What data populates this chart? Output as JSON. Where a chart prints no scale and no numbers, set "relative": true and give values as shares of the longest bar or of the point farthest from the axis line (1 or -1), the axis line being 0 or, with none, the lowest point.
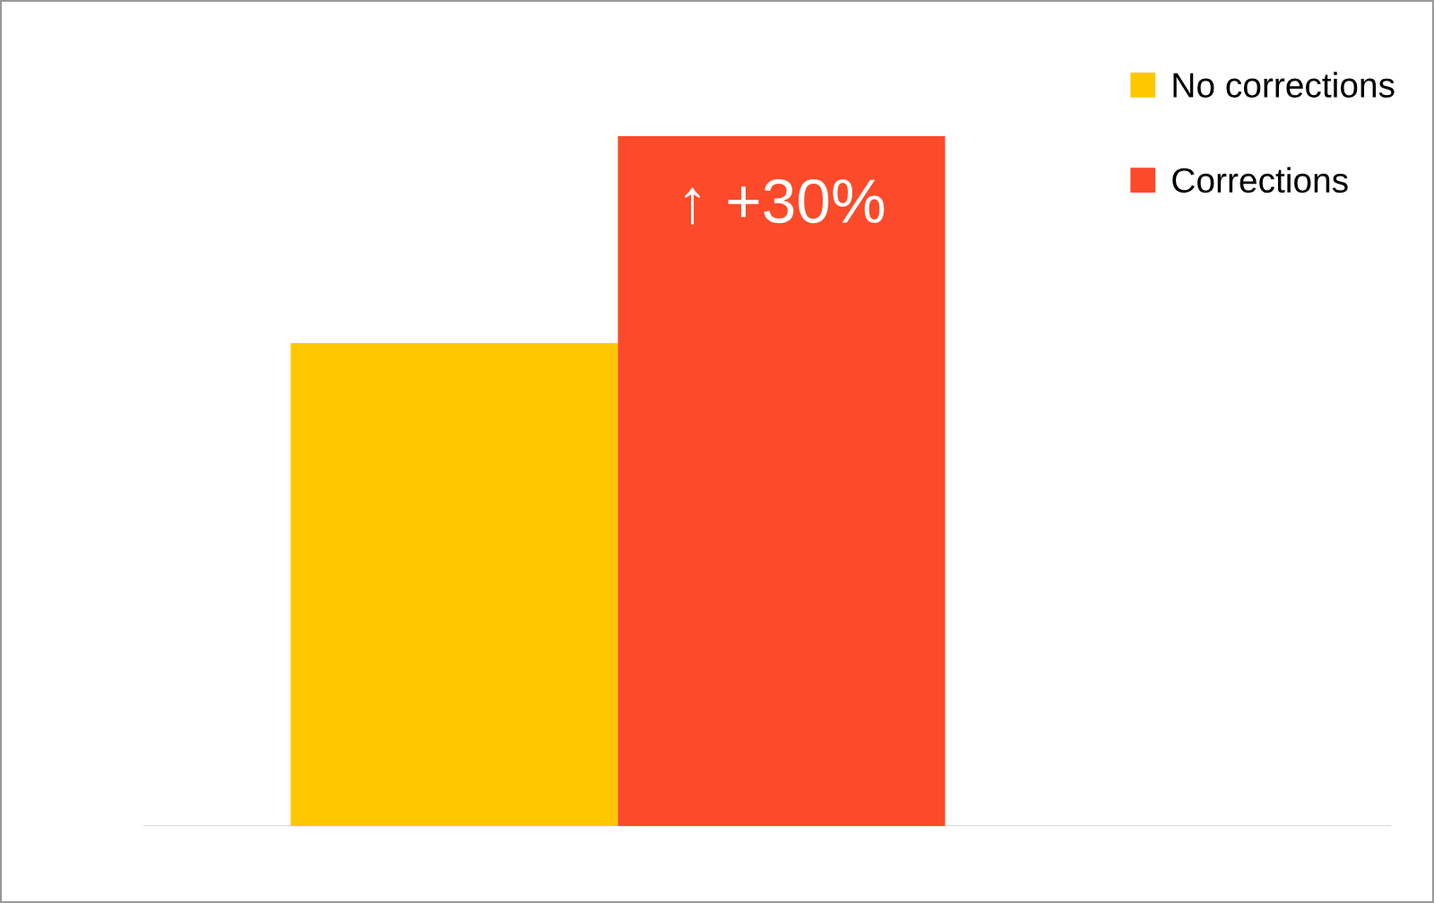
{
  "chart_data": {
    "type": "bar",
    "relative": true,
    "categories": [
      null
    ],
    "series": [
      {
        "name": "No corrections",
        "color": "#fdc800",
        "values": [
          0.7
        ]
      },
      {
        "name": "Corrections",
        "color": "#fc4a2a",
        "values": [
          1
        ]
      }
    ],
    "annotations": [
      "↑ +30%"
    ],
    "legend": "top right",
    "grid": false
  }
}
